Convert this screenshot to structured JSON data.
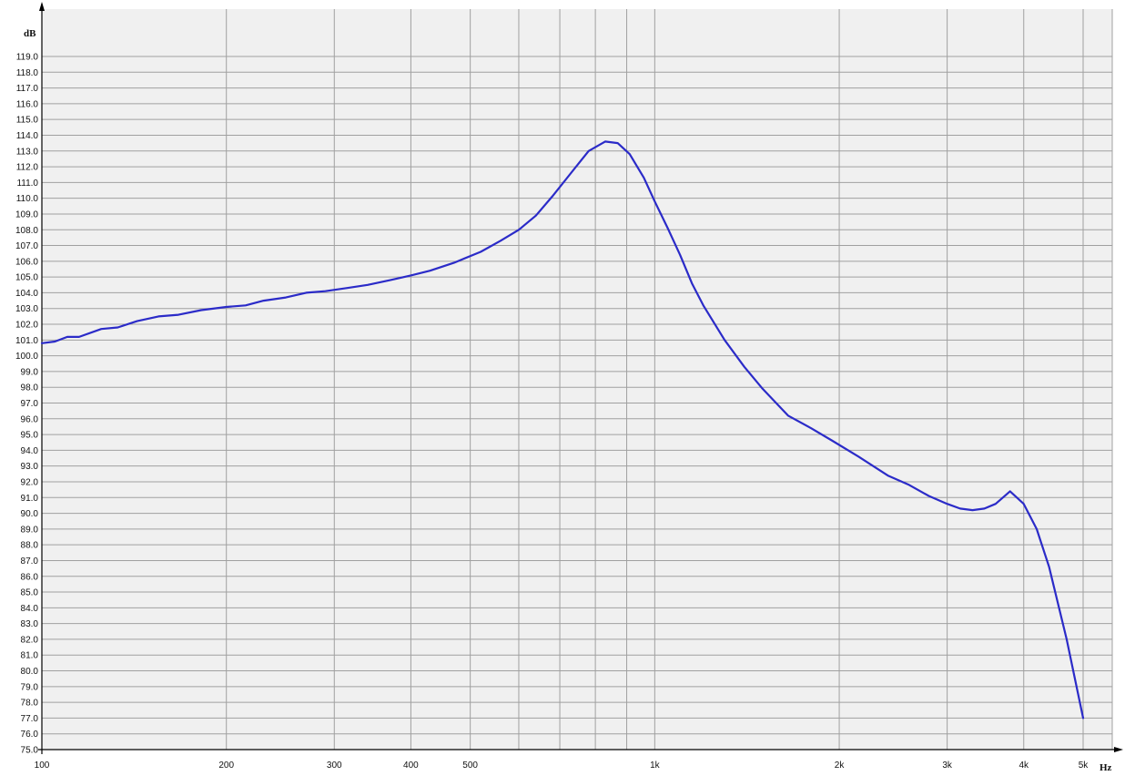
{
  "chart_data": {
    "type": "line",
    "title": "",
    "xlabel": "Hz",
    "ylabel": "dB",
    "x_scale": "log",
    "xlim": [
      100,
      5000
    ],
    "ylim": [
      75,
      119
    ],
    "grid": true,
    "colors": {
      "line": "#2b2bc8",
      "grid": "#a0a0a0",
      "plot_bg": "#f0f0f0",
      "axis": "#000000"
    },
    "y_ticks": [
      "75.0",
      "76.0",
      "77.0",
      "78.0",
      "79.0",
      "80.0",
      "81.0",
      "82.0",
      "83.0",
      "84.0",
      "85.0",
      "86.0",
      "87.0",
      "88.0",
      "89.0",
      "90.0",
      "91.0",
      "92.0",
      "93.0",
      "94.0",
      "95.0",
      "96.0",
      "97.0",
      "98.0",
      "99.0",
      "100.0",
      "101.0",
      "102.0",
      "103.0",
      "104.0",
      "105.0",
      "106.0",
      "107.0",
      "108.0",
      "109.0",
      "110.0",
      "111.0",
      "112.0",
      "113.0",
      "114.0",
      "115.0",
      "116.0",
      "117.0",
      "118.0",
      "119.0"
    ],
    "x_ticks": [
      {
        "value": 100,
        "label": "100"
      },
      {
        "value": 200,
        "label": "200"
      },
      {
        "value": 300,
        "label": "300"
      },
      {
        "value": 400,
        "label": "400"
      },
      {
        "value": 500,
        "label": "500"
      },
      {
        "value": 1000,
        "label": "1k"
      },
      {
        "value": 2000,
        "label": "2k"
      },
      {
        "value": 3000,
        "label": "3k"
      },
      {
        "value": 4000,
        "label": "4k"
      },
      {
        "value": 5000,
        "label": "5k"
      }
    ],
    "x_minor_gridlines": [
      600,
      700,
      800,
      900
    ],
    "series": [
      {
        "x": [
          100,
          105,
          110,
          115,
          125,
          133,
          143,
          155,
          167,
          182,
          200,
          215,
          230,
          250,
          270,
          290,
          315,
          340,
          370,
          400,
          430,
          470,
          520,
          560,
          600,
          640,
          680,
          730,
          780,
          830,
          870,
          910,
          960,
          1000,
          1050,
          1100,
          1150,
          1200,
          1300,
          1400,
          1500,
          1650,
          1800,
          1950,
          2150,
          2400,
          2600,
          2800,
          3000,
          3150,
          3300,
          3450,
          3600,
          3800,
          4000,
          4200,
          4400,
          4700,
          5000
        ],
        "y": [
          100.8,
          100.9,
          101.2,
          101.2,
          101.7,
          101.8,
          102.2,
          102.5,
          102.6,
          102.9,
          103.1,
          103.2,
          103.5,
          103.7,
          104.0,
          104.1,
          104.3,
          104.5,
          104.8,
          105.1,
          105.4,
          105.9,
          106.6,
          107.3,
          108.0,
          108.9,
          110.1,
          111.6,
          113.0,
          113.6,
          113.5,
          112.8,
          111.3,
          109.8,
          108.1,
          106.4,
          104.6,
          103.2,
          101.0,
          99.3,
          97.9,
          96.2,
          95.4,
          94.6,
          93.6,
          92.4,
          91.8,
          91.1,
          90.6,
          90.3,
          90.2,
          90.3,
          90.6,
          91.4,
          90.6,
          89.0,
          86.6,
          82.0,
          77.0
        ]
      }
    ]
  }
}
